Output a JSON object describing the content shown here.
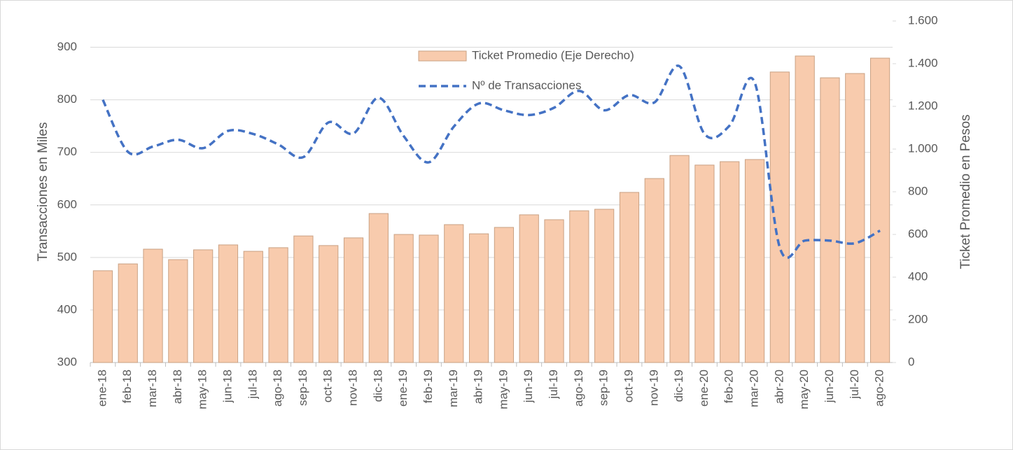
{
  "chart_data": {
    "type": "bar-line",
    "categories": [
      "ene-18",
      "feb-18",
      "mar-18",
      "abr-18",
      "may-18",
      "jun-18",
      "jul-18",
      "ago-18",
      "sep-18",
      "oct-18",
      "nov-18",
      "dic-18",
      "ene-19",
      "feb-19",
      "mar-19",
      "abr-19",
      "may-19",
      "jun-19",
      "jul-19",
      "ago-19",
      "sep-19",
      "oct-19",
      "nov-19",
      "dic-19",
      "ene-20",
      "feb-20",
      "mar-20",
      "abr-20",
      "may-20",
      "jun-20",
      "jul-20",
      "ago-20"
    ],
    "series": [
      {
        "name": "Ticket Promedio (Eje Derecho)",
        "type": "bar",
        "axis": "y2",
        "color": "#f8cbad",
        "values": [
          430,
          462,
          531,
          482,
          528,
          551,
          521,
          538,
          593,
          548,
          584,
          698,
          600,
          597,
          646,
          603,
          633,
          692,
          669,
          711,
          718,
          797,
          862,
          970,
          925,
          941,
          951,
          1361,
          1436,
          1334,
          1354,
          1426
        ]
      },
      {
        "name": "Nº de Transacciones",
        "type": "line",
        "color": "#4472c4",
        "values": [
          800,
          701,
          711,
          724,
          708,
          741,
          735,
          715,
          691,
          757,
          736,
          804,
          731,
          681,
          749,
          793,
          780,
          771,
          785,
          817,
          780,
          809,
          795,
          864,
          735,
          751,
          833,
          519,
          532,
          532,
          527,
          551
        ]
      }
    ],
    "ylabel": "Transacciones en Miles",
    "y2label": "Ticket Promedio en Pesos",
    "ylim": [
      300,
      950
    ],
    "yticks": [
      300,
      400,
      500,
      600,
      700,
      800,
      900
    ],
    "y2lim": [
      0,
      1600
    ],
    "y2ticks": [
      0,
      200,
      400,
      600,
      800,
      {
        "value": 1000,
        "label": "1.000"
      },
      {
        "value": 1200,
        "label": "1.200"
      },
      {
        "value": 1400,
        "label": "1.400"
      },
      {
        "value": 1600,
        "label": "1.600"
      }
    ],
    "grid": true,
    "legend": "top"
  }
}
